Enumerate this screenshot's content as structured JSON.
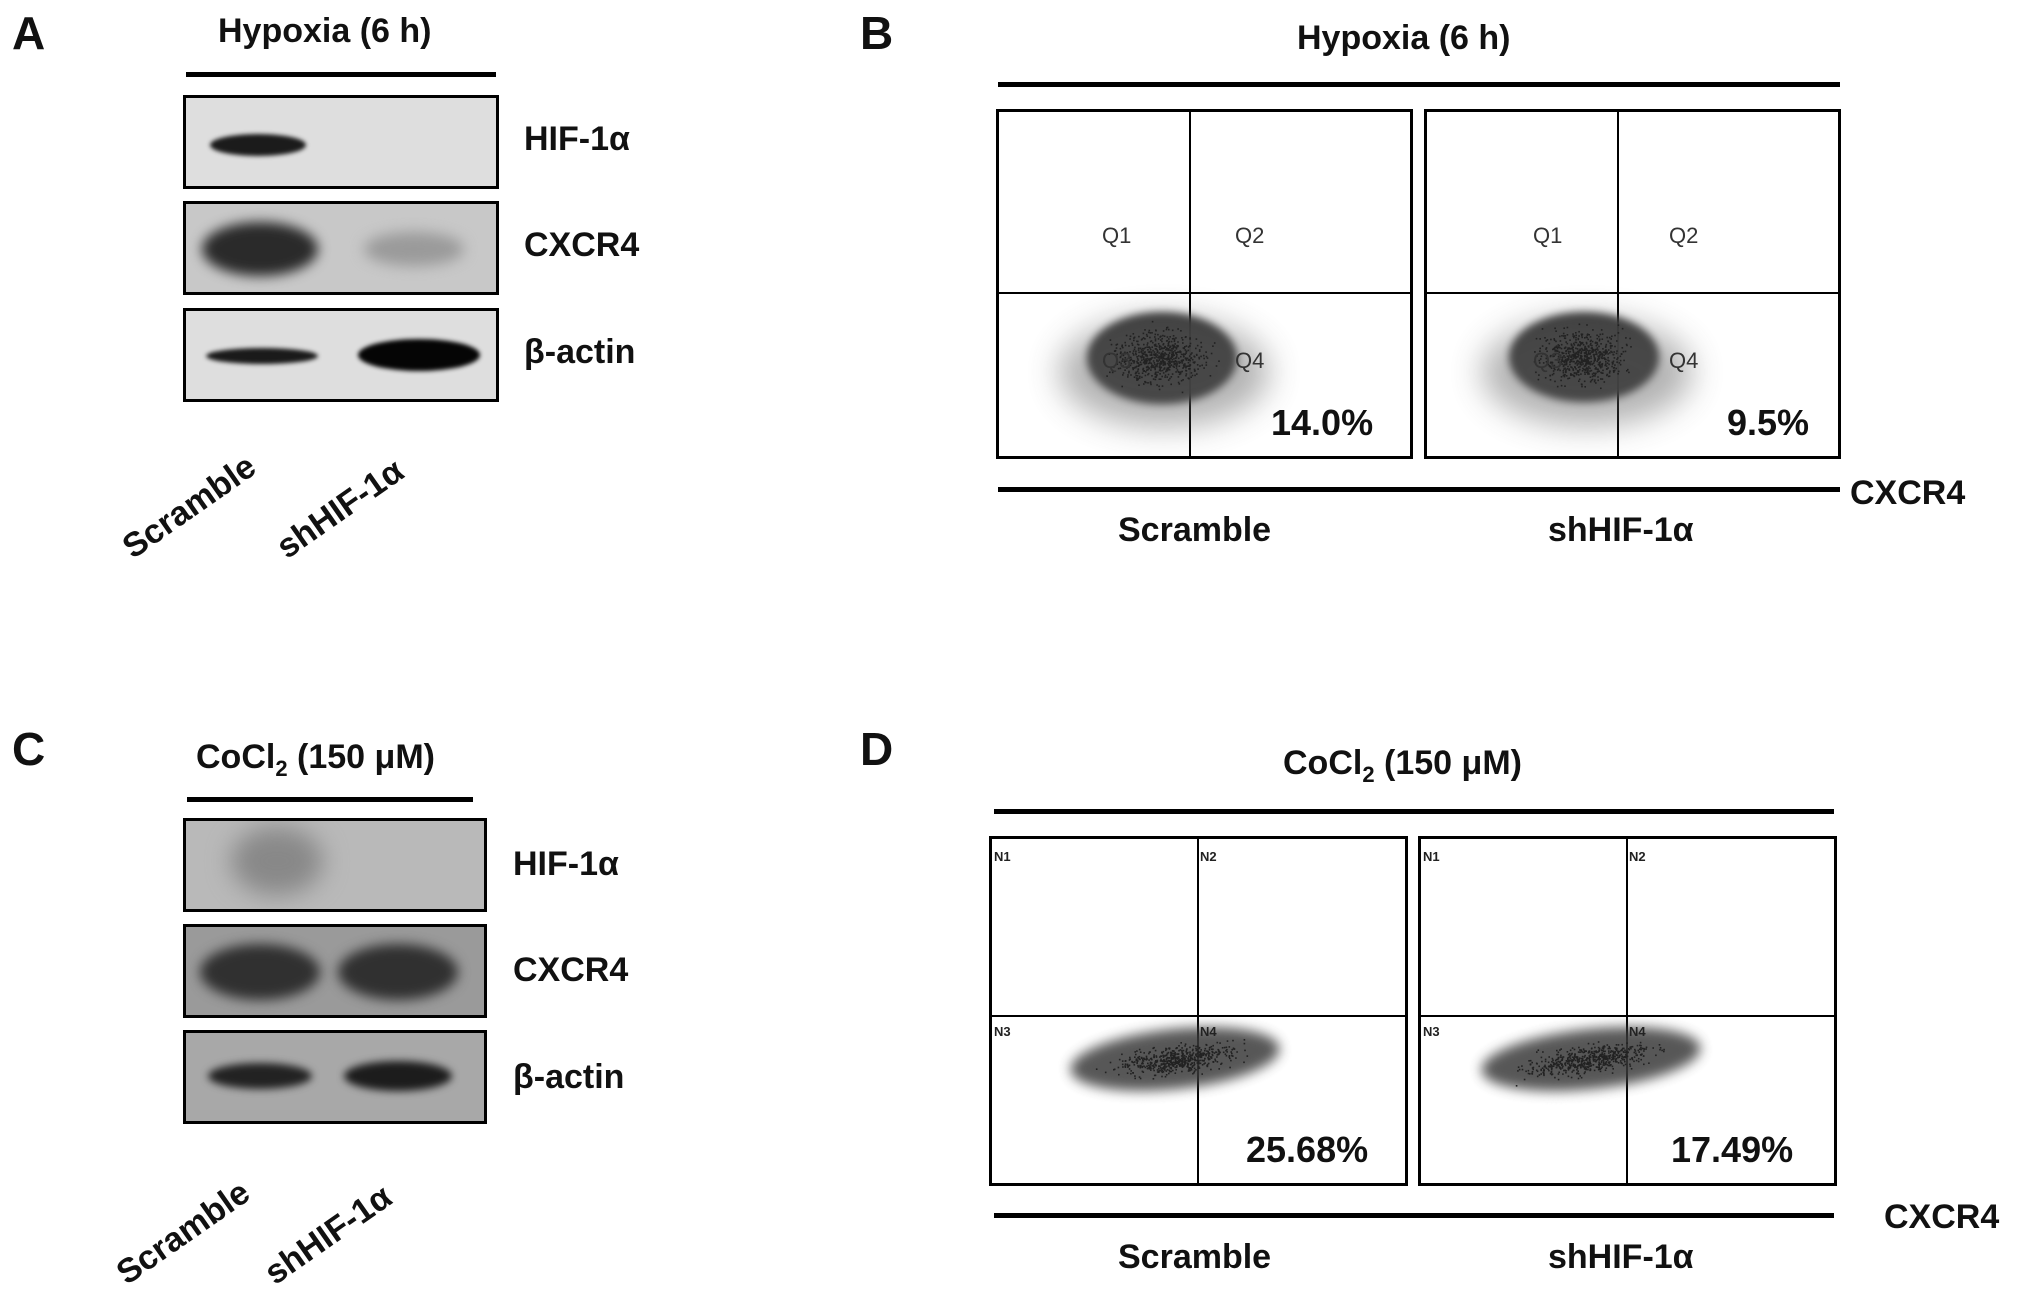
{
  "panels": {
    "A": {
      "letter": "A",
      "condition": "Hypoxia (6 h)",
      "bands": [
        "HIF-1α",
        "CXCR4",
        "β-actin"
      ],
      "lanes": [
        "Scramble",
        "shHIF-1α"
      ]
    },
    "B": {
      "letter": "B",
      "condition": "Hypoxia (6 h)",
      "quadrants": [
        "Q1",
        "Q2",
        "Q3",
        "Q4"
      ],
      "samples": [
        {
          "name": "Scramble",
          "percent": "14.0%"
        },
        {
          "name": "shHIF-1α",
          "percent": "9.5%"
        }
      ],
      "axis_label": "CXCR4"
    },
    "C": {
      "letter": "C",
      "condition_main": "CoCl",
      "condition_sub": "2",
      "condition_rest": " (150 μM)",
      "bands": [
        "HIF-1α",
        "CXCR4",
        "β-actin"
      ],
      "lanes": [
        "Scramble",
        "shHIF-1α"
      ]
    },
    "D": {
      "letter": "D",
      "condition_main": "CoCl",
      "condition_sub": "2",
      "condition_rest": " (150 μM)",
      "quadrants": [
        "N1",
        "N2",
        "N3",
        "N4"
      ],
      "samples": [
        {
          "name": "Scramble",
          "percent": "25.68%"
        },
        {
          "name": "shHIF-1α",
          "percent": "17.49%"
        }
      ],
      "axis_label": "CXCR4"
    }
  }
}
